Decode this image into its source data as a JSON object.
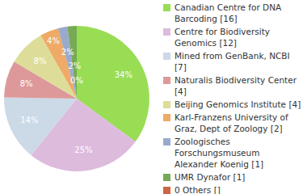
{
  "chart_data": {
    "type": "pie",
    "categories": [
      "Canadian Centre for DNA Barcoding [16]",
      "Centre for Biodiversity Genomics [12]",
      "Mined from GenBank, NCBI [7]",
      "Naturalis Biodiversity Center [4]",
      "Beijing Genomics Institute [4]",
      "Karl-Franzens University of Graz, Dept of Zoology [2]",
      "Zoologisches Forschungsmuseum Alexander Koenig [1]",
      "UMR Dynafor [1]",
      "0 Others []"
    ],
    "values": [
      34,
      25,
      14,
      8,
      8,
      4,
      2,
      2,
      0
    ],
    "value_labels": [
      "34%",
      "25%",
      "14%",
      "8%",
      "8%",
      "4%",
      "2%",
      "2%",
      "0%"
    ],
    "colors": [
      "#99dd55",
      "#ddbbdd",
      "#ccd9e6",
      "#dd9999",
      "#dddd99",
      "#eeaa66",
      "#99aacc",
      "#77aa55",
      "#cc6644"
    ],
    "data_labels": true,
    "legend": "right"
  }
}
